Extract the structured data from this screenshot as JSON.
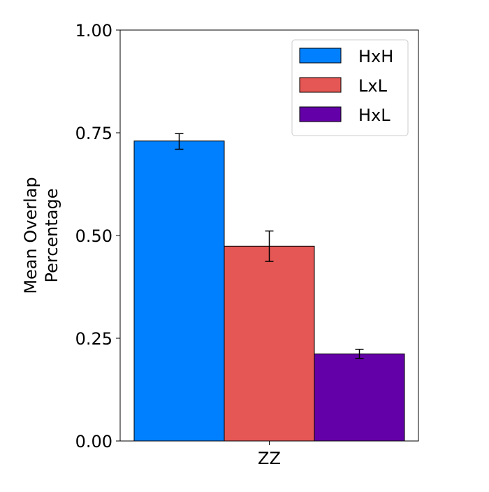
{
  "chart_data": {
    "type": "bar",
    "title": "",
    "ylabel": [
      "Mean Overlap",
      "Percentage"
    ],
    "xlabel": "",
    "categories": [
      "ZZ"
    ],
    "ylim": [
      0,
      1.0
    ],
    "yticks": [
      0.0,
      0.25,
      0.5,
      0.75,
      1.0
    ],
    "ytick_labels": [
      "0.00",
      "0.25",
      "0.50",
      "0.75",
      "1.00"
    ],
    "legend_position": "top-right",
    "series": [
      {
        "name": "HxH",
        "color": "#0080ff",
        "values": [
          0.73
        ],
        "error_low": [
          0.71
        ],
        "error_high": [
          0.748
        ]
      },
      {
        "name": "LxL",
        "color": "#e55755",
        "values": [
          0.474
        ],
        "error_low": [
          0.437
        ],
        "error_high": [
          0.511
        ]
      },
      {
        "name": "HxL",
        "color": "#6300a7",
        "values": [
          0.212
        ],
        "error_low": [
          0.201
        ],
        "error_high": [
          0.223
        ]
      }
    ]
  }
}
